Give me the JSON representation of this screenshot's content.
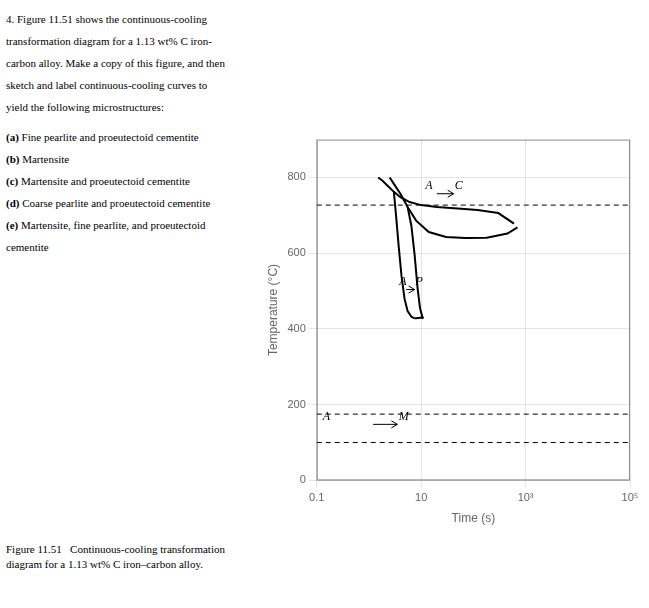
{
  "chart_data": {
    "type": "line",
    "title": "Figure 11.51  Continuous-cooling transformation\ndiagram for a 1.13 wt% C iron–carbon alloy.",
    "subtitle": [
      "4. Figure 11.51 shows the continuous-cooling",
      "transformation diagram for a 1.13 wt% C iron-",
      "carbon alloy. Make a copy of this figure, and then",
      "sketch and label continuous-cooling curves to",
      "yield the following microstructures:",
      "(a) Fine pearlite and proeutectoid cementite",
      "(b) Martensite",
      "(c) Martensite and proeutectoid cementite",
      "(d) Coarse pearlite and proeutectoid cementite",
      "(e) Martensite, fine pearlite, and proeutectoid",
      "cementite"
    ],
    "xlabel": "Time (s)",
    "ylabel": "Temperature (°C)",
    "log": "x",
    "xlim": [
      0.1,
      100000
    ],
    "xticks": [
      0.1,
      10,
      {
        "value": 1000,
        "label": "10³"
      },
      {
        "value": 100000,
        "label": "10⁵"
      }
    ],
    "ylim": [
      0,
      900
    ],
    "yticks": [
      0,
      200,
      400,
      600,
      800
    ],
    "grid": true,
    "color": "#000000",
    "series": [
      {
        "x": [
          1.5,
          1.8,
          2.2,
          3.0,
          4.0,
          6.0,
          10,
          20,
          50,
          120,
          300,
          600
        ],
        "values": [
          800,
          792,
          780,
          762,
          748,
          735,
          727,
          722,
          718,
          714,
          706,
          678
        ]
      },
      {
        "x": [
          3.0,
          3.3,
          3.7,
          4.2,
          4.8,
          5.5,
          6.5,
          7.5
        ],
        "values": [
          762,
          700,
          620,
          540,
          480,
          447,
          432,
          428
        ]
      },
      {
        "x": [
          2.5,
          3.0,
          4.0,
          5.5,
          8.0,
          14,
          30,
          70,
          180,
          450,
          700
        ],
        "values": [
          800,
          783,
          757,
          722,
          686,
          656,
          643,
          640,
          641,
          652,
          668
        ]
      },
      {
        "x": [
          5.5,
          6.5,
          7.5,
          8.5,
          9.5,
          10.5,
          11.0
        ],
        "values": [
          722,
          672,
          595,
          510,
          455,
          432,
          428
        ]
      },
      {
        "x": [
          7.5,
          8.0,
          9.0,
          10.0,
          11.0
        ],
        "values": [
          428,
          428,
          429,
          430,
          428
        ]
      }
    ],
    "annotations": [
      {
        "type": "hline",
        "y": 727,
        "line_style": "dashed"
      },
      {
        "type": "hline",
        "y": 175,
        "line_style": "dashed"
      },
      {
        "type": "hline",
        "y": 100,
        "line_style": "dashed"
      },
      {
        "type": "arrow",
        "x1": 20,
        "x2": 42,
        "y": 757
      },
      {
        "type": "text",
        "text": "A",
        "x": 12,
        "y": 761
      },
      {
        "type": "text",
        "text": "C",
        "x": 44,
        "y": 761
      },
      {
        "type": "arrow",
        "x1": 5.2,
        "x2": 7.5,
        "y": 504
      },
      {
        "type": "text",
        "text": "A",
        "x": 3.8,
        "y": 508
      },
      {
        "type": "text",
        "text": "P",
        "x": 7.8,
        "y": 508
      },
      {
        "type": "arrow",
        "x1": 1.2,
        "x2": 3.5,
        "y": 148
      },
      {
        "type": "text",
        "text": "A",
        "x": 0.13,
        "y": 152
      },
      {
        "type": "text",
        "text": "M",
        "x": 3.7,
        "y": 152
      }
    ]
  }
}
